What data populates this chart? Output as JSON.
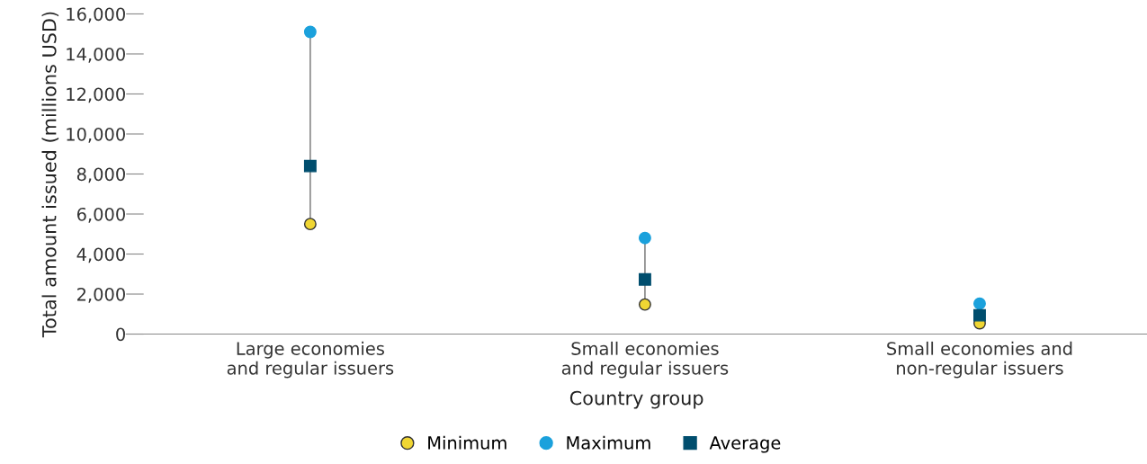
{
  "chart_data": {
    "type": "scatter",
    "xlabel": "Country group",
    "ylabel": "Total amount issued (millions USD)",
    "categories": [
      "Large economies\nand regular issuers",
      "Small economies\nand regular issuers",
      "Small economies and\nnon-regular issuers"
    ],
    "series": [
      {
        "name": "Minimum",
        "color": "#f0d633",
        "marker": "circle",
        "values": [
          5500,
          1480,
          540
        ]
      },
      {
        "name": "Maximum",
        "color": "#1ba1dc",
        "marker": "circle",
        "values": [
          15100,
          4800,
          1520
        ]
      },
      {
        "name": "Average",
        "color": "#004e6e",
        "marker": "square",
        "values": [
          8400,
          2730,
          940
        ]
      }
    ],
    "ylim": [
      0,
      16000
    ],
    "yticks": [
      {
        "value": 0,
        "label": "0"
      },
      {
        "value": 2000,
        "label": "2,000"
      },
      {
        "value": 4000,
        "label": "4,000"
      },
      {
        "value": 6000,
        "label": "6,000"
      },
      {
        "value": 8000,
        "label": "8,000"
      },
      {
        "value": 10000,
        "label": "10,000"
      },
      {
        "value": 12000,
        "label": "12,000"
      },
      {
        "value": 14000,
        "label": "14,000"
      },
      {
        "value": 16000,
        "label": "16,000"
      }
    ],
    "grid": false,
    "legend": "bottom"
  }
}
